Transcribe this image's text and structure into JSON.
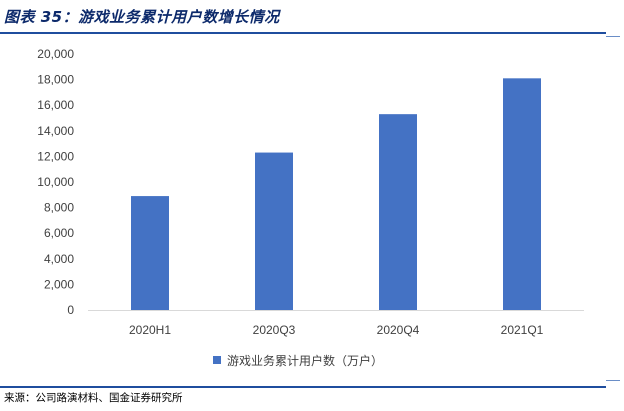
{
  "figure": {
    "title": "图表 35：游戏业务累计用户数增长情况",
    "source": "来源：公司路演材料、国金证券研究所"
  },
  "colors": {
    "bar": "#4472c4",
    "axis": "#d9d9d9",
    "rule": "#1f4e9e"
  },
  "chart_data": {
    "type": "bar",
    "categories": [
      "2020H1",
      "2020Q3",
      "2020Q4",
      "2021Q1"
    ],
    "series": [
      {
        "name": "游戏业务累计用户数（万户）",
        "values": [
          8900,
          12300,
          15300,
          18100
        ]
      }
    ],
    "ylim": [
      0,
      20000
    ],
    "yticks": [
      "0",
      "2,000",
      "4,000",
      "6,000",
      "8,000",
      "10,000",
      "12,000",
      "14,000",
      "16,000",
      "18,000",
      "20,000"
    ],
    "ytick_values": [
      0,
      2000,
      4000,
      6000,
      8000,
      10000,
      12000,
      14000,
      16000,
      18000,
      20000
    ],
    "grid": false,
    "legend_position": "bottom"
  }
}
